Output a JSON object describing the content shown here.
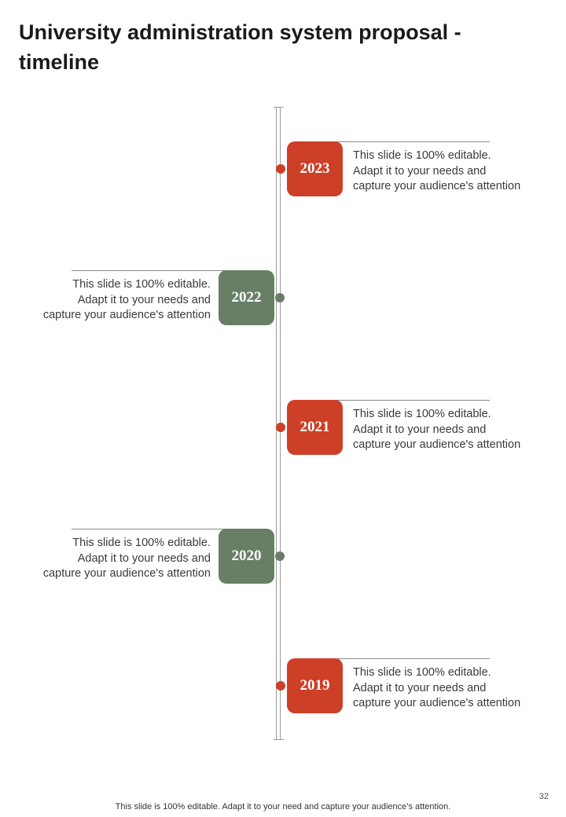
{
  "title": "University administration system proposal - timeline",
  "colors": {
    "red": "#cd3f27",
    "green": "#687f65"
  },
  "timeline": [
    {
      "year": "2023",
      "side": "right",
      "color": "red",
      "lines": [
        "This slide is 100% editable.",
        "Adapt it to your needs and",
        "capture your audience's attention"
      ]
    },
    {
      "year": "2022",
      "side": "left",
      "color": "green",
      "lines": [
        "This slide is 100% editable.",
        "Adapt it to your needs and",
        "capture your audience's attention"
      ]
    },
    {
      "year": "2021",
      "side": "right",
      "color": "red",
      "lines": [
        "This slide is 100% editable.",
        "Adapt it to your needs and",
        "capture your audience's attention"
      ]
    },
    {
      "year": "2020",
      "side": "left",
      "color": "green",
      "lines": [
        "This slide is 100% editable.",
        "Adapt it to your needs and",
        "capture your audience's attention"
      ]
    },
    {
      "year": "2019",
      "side": "right",
      "color": "red",
      "lines": [
        "This slide is 100% editable.",
        "Adapt it to your needs and",
        "capture your audience's attention"
      ]
    }
  ],
  "page_number": "32",
  "footer": "This slide is 100% editable. Adapt it to your need and capture your audience’s attention."
}
